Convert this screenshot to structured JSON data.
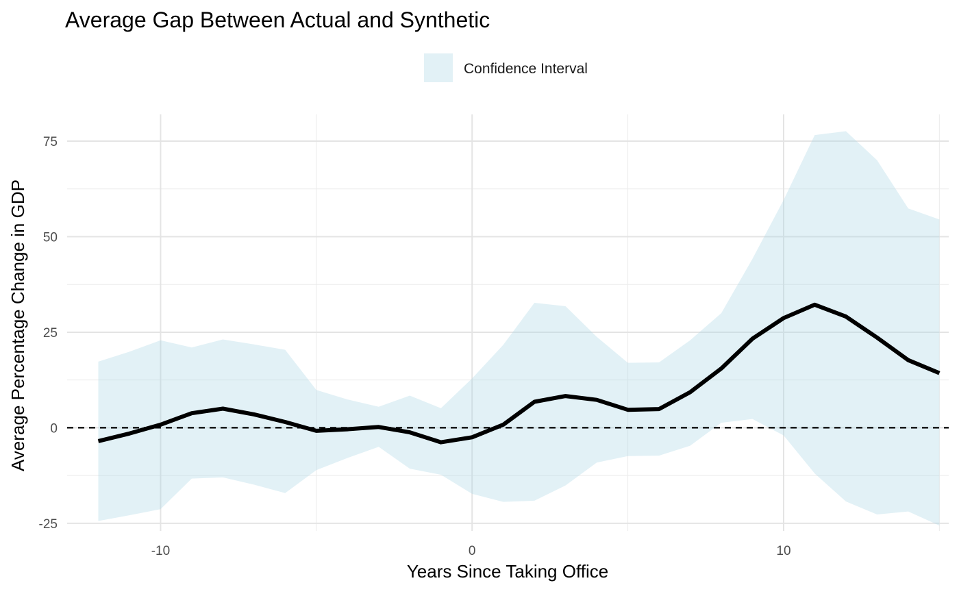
{
  "chart_data": {
    "type": "line",
    "title": "Average Gap Between Actual and Synthetic",
    "xlabel": "Years Since Taking Office",
    "ylabel": "Average Percentage Change in GDP",
    "xlim": [
      -13,
      15.3
    ],
    "ylim": [
      -27,
      82
    ],
    "x_ticks": [
      -10,
      0,
      10
    ],
    "x_tick_labels": [
      "-10",
      "0",
      "10"
    ],
    "x_minor_ticks": [
      -5,
      5,
      15
    ],
    "y_ticks": [
      -25,
      0,
      25,
      50,
      75
    ],
    "y_tick_labels": [
      "-25",
      "0",
      "25",
      "50",
      "75"
    ],
    "y_minor_ticks": [
      -12.5,
      12.5,
      37.5,
      62.5
    ],
    "grid": true,
    "legend_position": "top-center",
    "reference_line": {
      "y": 0,
      "style": "dashed",
      "color": "#000000"
    },
    "series": [
      {
        "type": "line",
        "color": "#000000",
        "x": [
          -12,
          -11,
          -10,
          -9,
          -8,
          -7,
          -6,
          -5,
          -4,
          -3,
          -2,
          -1,
          0,
          1,
          2,
          3,
          4,
          5,
          6,
          7,
          8,
          9,
          10,
          11,
          12,
          13,
          14,
          15
        ],
        "values": [
          -3.5,
          -1.5,
          0.8,
          3.8,
          5.0,
          3.5,
          1.5,
          -0.8,
          -0.4,
          0.2,
          -1.2,
          -3.8,
          -2.5,
          0.8,
          6.8,
          8.3,
          7.3,
          4.7,
          4.9,
          9.3,
          15.5,
          23.3,
          28.7,
          32.2,
          29.1,
          23.6,
          17.7,
          14.3
        ]
      },
      {
        "name": "Confidence Interval",
        "type": "band",
        "color": "#add8e6",
        "x": [
          -12,
          -11,
          -10,
          -9,
          -8,
          -7,
          -6,
          -5,
          -4,
          -3,
          -2,
          -1,
          0,
          1,
          2,
          3,
          4,
          5,
          6,
          7,
          8,
          9,
          10,
          11,
          12,
          13,
          14,
          15
        ],
        "upper": [
          17.3,
          19.9,
          22.9,
          21.0,
          23.1,
          21.8,
          20.4,
          9.9,
          7.4,
          5.5,
          8.4,
          5.1,
          12.9,
          21.7,
          32.7,
          31.8,
          23.8,
          17.0,
          17.1,
          22.9,
          30.0,
          44.2,
          59.6,
          76.6,
          77.6,
          70.0,
          57.4,
          54.5
        ],
        "lower": [
          -24.4,
          -22.9,
          -21.3,
          -13.3,
          -13.0,
          -14.9,
          -17.1,
          -11.1,
          -7.9,
          -5.0,
          -10.7,
          -12.3,
          -17.3,
          -19.4,
          -19.1,
          -15.1,
          -9.1,
          -7.4,
          -7.3,
          -4.7,
          1.3,
          2.3,
          -2.0,
          -12.0,
          -19.3,
          -22.7,
          -21.9,
          -25.6
        ]
      }
    ]
  }
}
